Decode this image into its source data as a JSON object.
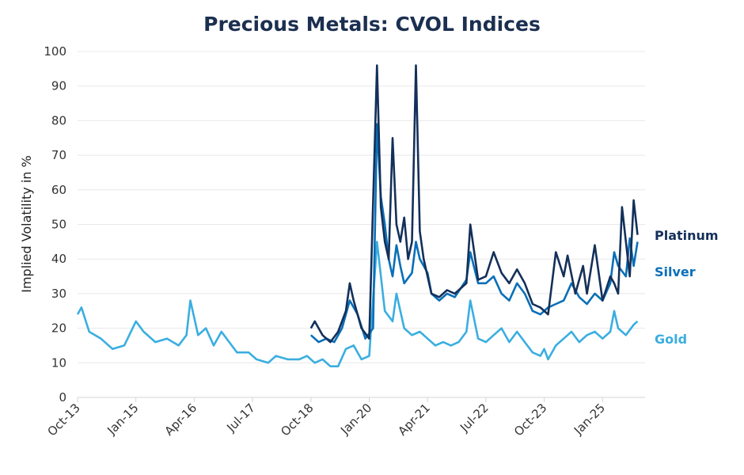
{
  "chart_data": {
    "type": "line",
    "title": "Precious Metals: CVOL Indices",
    "xlabel": "",
    "ylabel": "Implied Volatility in %",
    "ylim": [
      0,
      100
    ],
    "yticks": [
      0,
      10,
      20,
      30,
      40,
      50,
      60,
      70,
      80,
      90,
      100
    ],
    "xticks": [
      "Oct-13",
      "Jan-15",
      "Apr-16",
      "Jul-17",
      "Oct-18",
      "Jan-20",
      "Apr-21",
      "Jul-22",
      "Oct-23",
      "Jan-25"
    ],
    "grid": "horizontal",
    "legend": "right end labels",
    "series": [
      {
        "name": "Platinum",
        "color": "#14305a",
        "points": [
          [
            "2018-10",
            20
          ],
          [
            "2018-11",
            22
          ],
          [
            "2019-01",
            18
          ],
          [
            "2019-03",
            16
          ],
          [
            "2019-05",
            19
          ],
          [
            "2019-07",
            25
          ],
          [
            "2019-08",
            33
          ],
          [
            "2019-09",
            28
          ],
          [
            "2019-11",
            20
          ],
          [
            "2020-01",
            17
          ],
          [
            "2020-03",
            96
          ],
          [
            "2020-04",
            55
          ],
          [
            "2020-05",
            45
          ],
          [
            "2020-06",
            40
          ],
          [
            "2020-07",
            75
          ],
          [
            "2020-08",
            50
          ],
          [
            "2020-09",
            45
          ],
          [
            "2020-10",
            52
          ],
          [
            "2020-11",
            40
          ],
          [
            "2020-12",
            45
          ],
          [
            "2021-01",
            96
          ],
          [
            "2021-02",
            48
          ],
          [
            "2021-03",
            40
          ],
          [
            "2021-04",
            35
          ],
          [
            "2021-05",
            30
          ],
          [
            "2021-07",
            29
          ],
          [
            "2021-09",
            31
          ],
          [
            "2021-11",
            30
          ],
          [
            "2022-02",
            33
          ],
          [
            "2022-03",
            50
          ],
          [
            "2022-05",
            34
          ],
          [
            "2022-07",
            35
          ],
          [
            "2022-09",
            42
          ],
          [
            "2022-11",
            36
          ],
          [
            "2023-01",
            33
          ],
          [
            "2023-03",
            37
          ],
          [
            "2023-05",
            33
          ],
          [
            "2023-07",
            27
          ],
          [
            "2023-09",
            26
          ],
          [
            "2023-11",
            24
          ],
          [
            "2024-01",
            42
          ],
          [
            "2024-03",
            35
          ],
          [
            "2024-04",
            41
          ],
          [
            "2024-06",
            30
          ],
          [
            "2024-08",
            38
          ],
          [
            "2024-09",
            30
          ],
          [
            "2024-11",
            44
          ],
          [
            "2025-01",
            28
          ],
          [
            "2025-03",
            35
          ],
          [
            "2025-04",
            33
          ],
          [
            "2025-05",
            30
          ],
          [
            "2025-06",
            55
          ],
          [
            "2025-07",
            45
          ],
          [
            "2025-08",
            35
          ],
          [
            "2025-09",
            57
          ],
          [
            "2025-10",
            47
          ]
        ]
      },
      {
        "name": "Silver",
        "color": "#0a6fb8",
        "points": [
          [
            "2018-10",
            18
          ],
          [
            "2018-12",
            16
          ],
          [
            "2019-02",
            17
          ],
          [
            "2019-04",
            16
          ],
          [
            "2019-06",
            20
          ],
          [
            "2019-08",
            28
          ],
          [
            "2019-10",
            24
          ],
          [
            "2019-12",
            17
          ],
          [
            "2020-02",
            20
          ],
          [
            "2020-03",
            79
          ],
          [
            "2020-04",
            58
          ],
          [
            "2020-05",
            50
          ],
          [
            "2020-06",
            40
          ],
          [
            "2020-07",
            35
          ],
          [
            "2020-08",
            44
          ],
          [
            "2020-09",
            38
          ],
          [
            "2020-10",
            33
          ],
          [
            "2020-12",
            36
          ],
          [
            "2021-01",
            45
          ],
          [
            "2021-02",
            40
          ],
          [
            "2021-03",
            38
          ],
          [
            "2021-04",
            36
          ],
          [
            "2021-05",
            30
          ],
          [
            "2021-07",
            28
          ],
          [
            "2021-09",
            30
          ],
          [
            "2021-11",
            29
          ],
          [
            "2022-02",
            34
          ],
          [
            "2022-03",
            42
          ],
          [
            "2022-05",
            33
          ],
          [
            "2022-07",
            33
          ],
          [
            "2022-09",
            35
          ],
          [
            "2022-11",
            30
          ],
          [
            "2023-01",
            28
          ],
          [
            "2023-03",
            33
          ],
          [
            "2023-05",
            30
          ],
          [
            "2023-07",
            25
          ],
          [
            "2023-09",
            24
          ],
          [
            "2023-11",
            26
          ],
          [
            "2024-01",
            27
          ],
          [
            "2024-03",
            28
          ],
          [
            "2024-05",
            33
          ],
          [
            "2024-07",
            29
          ],
          [
            "2024-09",
            27
          ],
          [
            "2024-11",
            30
          ],
          [
            "2025-01",
            28
          ],
          [
            "2025-03",
            33
          ],
          [
            "2025-04",
            42
          ],
          [
            "2025-05",
            38
          ],
          [
            "2025-07",
            35
          ],
          [
            "2025-08",
            46
          ],
          [
            "2025-09",
            38
          ],
          [
            "2025-10",
            45
          ]
        ]
      },
      {
        "name": "Gold",
        "color": "#3aaee0",
        "points": [
          [
            "2013-10",
            24
          ],
          [
            "2013-11",
            26
          ],
          [
            "2014-01",
            19
          ],
          [
            "2014-04",
            17
          ],
          [
            "2014-07",
            14
          ],
          [
            "2014-10",
            15
          ],
          [
            "2015-01",
            22
          ],
          [
            "2015-03",
            19
          ],
          [
            "2015-06",
            16
          ],
          [
            "2015-09",
            17
          ],
          [
            "2015-12",
            15
          ],
          [
            "2016-02",
            18
          ],
          [
            "2016-03",
            28
          ],
          [
            "2016-05",
            18
          ],
          [
            "2016-07",
            20
          ],
          [
            "2016-09",
            15
          ],
          [
            "2016-11",
            19
          ],
          [
            "2017-01",
            16
          ],
          [
            "2017-03",
            13
          ],
          [
            "2017-06",
            13
          ],
          [
            "2017-08",
            11
          ],
          [
            "2017-11",
            10
          ],
          [
            "2018-01",
            12
          ],
          [
            "2018-04",
            11
          ],
          [
            "2018-07",
            11
          ],
          [
            "2018-09",
            12
          ],
          [
            "2018-11",
            10
          ],
          [
            "2019-01",
            11
          ],
          [
            "2019-03",
            9
          ],
          [
            "2019-05",
            9
          ],
          [
            "2019-07",
            14
          ],
          [
            "2019-09",
            15
          ],
          [
            "2019-11",
            11
          ],
          [
            "2020-01",
            12
          ],
          [
            "2020-03",
            45
          ],
          [
            "2020-05",
            25
          ],
          [
            "2020-07",
            22
          ],
          [
            "2020-08",
            30
          ],
          [
            "2020-10",
            20
          ],
          [
            "2020-12",
            18
          ],
          [
            "2021-02",
            19
          ],
          [
            "2021-04",
            17
          ],
          [
            "2021-06",
            15
          ],
          [
            "2021-08",
            16
          ],
          [
            "2021-10",
            15
          ],
          [
            "2021-12",
            16
          ],
          [
            "2022-02",
            19
          ],
          [
            "2022-03",
            28
          ],
          [
            "2022-05",
            17
          ],
          [
            "2022-07",
            16
          ],
          [
            "2022-09",
            18
          ],
          [
            "2022-11",
            20
          ],
          [
            "2023-01",
            16
          ],
          [
            "2023-03",
            19
          ],
          [
            "2023-05",
            16
          ],
          [
            "2023-07",
            13
          ],
          [
            "2023-09",
            12
          ],
          [
            "2023-10",
            14
          ],
          [
            "2023-11",
            11
          ],
          [
            "2024-01",
            15
          ],
          [
            "2024-03",
            17
          ],
          [
            "2024-05",
            19
          ],
          [
            "2024-07",
            16
          ],
          [
            "2024-09",
            18
          ],
          [
            "2024-11",
            19
          ],
          [
            "2025-01",
            17
          ],
          [
            "2025-03",
            19
          ],
          [
            "2025-04",
            25
          ],
          [
            "2025-05",
            20
          ],
          [
            "2025-07",
            18
          ],
          [
            "2025-09",
            21
          ],
          [
            "2025-10",
            22
          ]
        ]
      }
    ]
  }
}
